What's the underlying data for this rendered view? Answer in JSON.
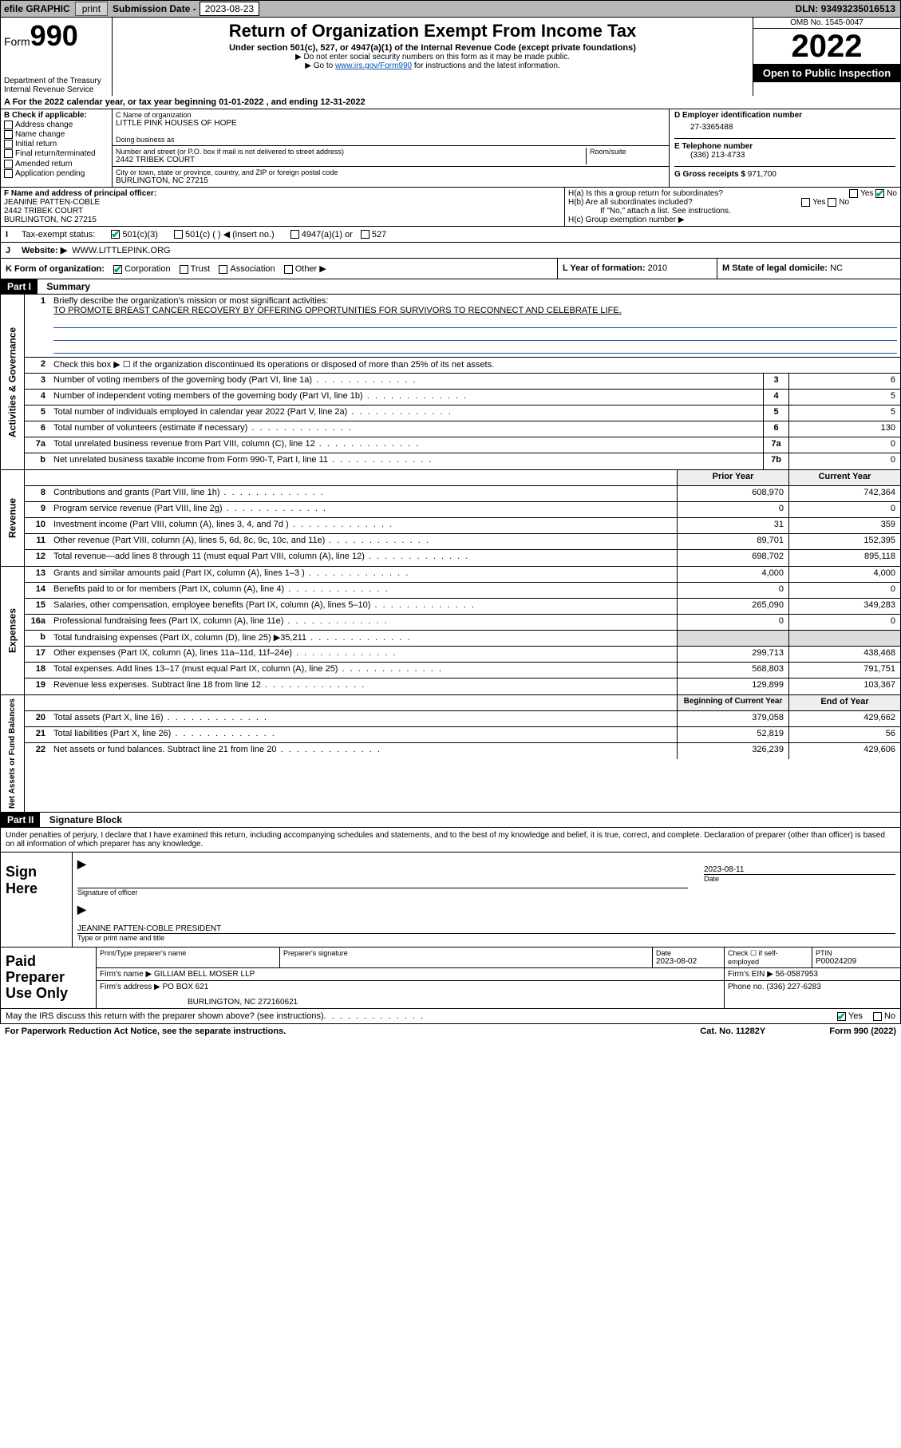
{
  "topbar": {
    "efile_label": "efile GRAPHIC",
    "print_btn": "print",
    "sub_label": "Submission Date -",
    "sub_date": "2023-08-23",
    "dln_label": "DLN:",
    "dln": "93493235016513"
  },
  "header": {
    "form_word": "Form",
    "form_no": "990",
    "dept": "Department of the Treasury",
    "irs": "Internal Revenue Service",
    "title": "Return of Organization Exempt From Income Tax",
    "sub1": "Under section 501(c), 527, or 4947(a)(1) of the Internal Revenue Code (except private foundations)",
    "sub2": "▶ Do not enter social security numbers on this form as it may be made public.",
    "sub3_pre": "▶ Go to ",
    "sub3_link": "www.irs.gov/Form990",
    "sub3_post": " for instructions and the latest information.",
    "omb": "OMB No. 1545-0047",
    "year": "2022",
    "open": "Open to Public Inspection"
  },
  "line_a": "A For the 2022 calendar year, or tax year beginning 01-01-2022   , and ending 12-31-2022",
  "box_b": {
    "title": "B Check if applicable:",
    "opts": [
      "Address change",
      "Name change",
      "Initial return",
      "Final return/terminated",
      "Amended return",
      "Application pending"
    ]
  },
  "box_c": {
    "label": "C Name of organization",
    "name": "LITTLE PINK HOUSES OF HOPE",
    "dba_label": "Doing business as",
    "addr_label": "Number and street (or P.O. box if mail is not delivered to street address)",
    "room_label": "Room/suite",
    "addr": "2442 TRIBEK COURT",
    "city_label": "City or town, state or province, country, and ZIP or foreign postal code",
    "city": "BURLINGTON, NC  27215"
  },
  "box_d": {
    "label": "D Employer identification number",
    "val": "27-3365488"
  },
  "box_e": {
    "label": "E Telephone number",
    "val": "(336) 213-4733"
  },
  "box_g": {
    "label": "G Gross receipts $",
    "val": "971,700"
  },
  "box_f": {
    "label": "F Name and address of principal officer:",
    "name": "JEANINE PATTEN-COBLE",
    "addr1": "2442 TRIBEK COURT",
    "addr2": "BURLINGTON, NC  27215"
  },
  "box_h": {
    "a": "H(a)  Is this a group return for subordinates?",
    "b": "H(b)  Are all subordinates included?",
    "note": "If \"No,\" attach a list. See instructions.",
    "c": "H(c)  Group exemption number ▶"
  },
  "box_i": {
    "label": "Tax-exempt status:",
    "o1": "501(c)(3)",
    "o2": "501(c) (   ) ◀ (insert no.)",
    "o3": "4947(a)(1) or",
    "o4": "527"
  },
  "box_j": {
    "label": "Website: ▶",
    "val": "WWW.LITTLEPINK.ORG"
  },
  "box_k": {
    "label": "K Form of organization:",
    "opts": [
      "Corporation",
      "Trust",
      "Association",
      "Other ▶"
    ]
  },
  "box_l": {
    "label": "L Year of formation:",
    "val": "2010"
  },
  "box_m": {
    "label": "M State of legal domicile:",
    "val": "NC"
  },
  "part1": {
    "hdr": "Part I",
    "title": "Summary"
  },
  "summary": {
    "q1a": "Briefly describe the organization's mission or most significant activities:",
    "q1b": "TO PROMOTE BREAST CANCER RECOVERY BY OFFERING OPPORTUNITIES FOR SURVIVORS TO RECONNECT AND CELEBRATE LIFE.",
    "q2": "Check this box ▶ ☐  if the organization discontinued its operations or disposed of more than 25% of its net assets.",
    "rows_gov": [
      {
        "n": "3",
        "d": "Number of voting members of the governing body (Part VI, line 1a)",
        "box": "3",
        "v": "6"
      },
      {
        "n": "4",
        "d": "Number of independent voting members of the governing body (Part VI, line 1b)",
        "box": "4",
        "v": "5"
      },
      {
        "n": "5",
        "d": "Total number of individuals employed in calendar year 2022 (Part V, line 2a)",
        "box": "5",
        "v": "5"
      },
      {
        "n": "6",
        "d": "Total number of volunteers (estimate if necessary)",
        "box": "6",
        "v": "130"
      },
      {
        "n": "7a",
        "d": "Total unrelated business revenue from Part VIII, column (C), line 12",
        "box": "7a",
        "v": "0"
      },
      {
        "n": "b",
        "d": "Net unrelated business taxable income from Form 990-T, Part I, line 11",
        "box": "7b",
        "v": "0"
      }
    ],
    "colhdr_prior": "Prior Year",
    "colhdr_curr": "Current Year",
    "rows_rev": [
      {
        "n": "8",
        "d": "Contributions and grants (Part VIII, line 1h)",
        "p": "608,970",
        "c": "742,364"
      },
      {
        "n": "9",
        "d": "Program service revenue (Part VIII, line 2g)",
        "p": "0",
        "c": "0"
      },
      {
        "n": "10",
        "d": "Investment income (Part VIII, column (A), lines 3, 4, and 7d )",
        "p": "31",
        "c": "359"
      },
      {
        "n": "11",
        "d": "Other revenue (Part VIII, column (A), lines 5, 6d, 8c, 9c, 10c, and 11e)",
        "p": "89,701",
        "c": "152,395"
      },
      {
        "n": "12",
        "d": "Total revenue—add lines 8 through 11 (must equal Part VIII, column (A), line 12)",
        "p": "698,702",
        "c": "895,118"
      }
    ],
    "rows_exp": [
      {
        "n": "13",
        "d": "Grants and similar amounts paid (Part IX, column (A), lines 1–3 )",
        "p": "4,000",
        "c": "4,000"
      },
      {
        "n": "14",
        "d": "Benefits paid to or for members (Part IX, column (A), line 4)",
        "p": "0",
        "c": "0"
      },
      {
        "n": "15",
        "d": "Salaries, other compensation, employee benefits (Part IX, column (A), lines 5–10)",
        "p": "265,090",
        "c": "349,283"
      },
      {
        "n": "16a",
        "d": "Professional fundraising fees (Part IX, column (A), line 11e)",
        "p": "0",
        "c": "0"
      },
      {
        "n": "b",
        "d": "Total fundraising expenses (Part IX, column (D), line 25) ▶35,211",
        "p": "",
        "c": ""
      },
      {
        "n": "17",
        "d": "Other expenses (Part IX, column (A), lines 11a–11d, 11f–24e)",
        "p": "299,713",
        "c": "438,468"
      },
      {
        "n": "18",
        "d": "Total expenses. Add lines 13–17 (must equal Part IX, column (A), line 25)",
        "p": "568,803",
        "c": "791,751"
      },
      {
        "n": "19",
        "d": "Revenue less expenses. Subtract line 18 from line 12",
        "p": "129,899",
        "c": "103,367"
      }
    ],
    "colhdr_beg": "Beginning of Current Year",
    "colhdr_end": "End of Year",
    "rows_net": [
      {
        "n": "20",
        "d": "Total assets (Part X, line 16)",
        "p": "379,058",
        "c": "429,662"
      },
      {
        "n": "21",
        "d": "Total liabilities (Part X, line 26)",
        "p": "52,819",
        "c": "56"
      },
      {
        "n": "22",
        "d": "Net assets or fund balances. Subtract line 21 from line 20",
        "p": "326,239",
        "c": "429,606"
      }
    ],
    "vtab_gov": "Activities & Governance",
    "vtab_rev": "Revenue",
    "vtab_exp": "Expenses",
    "vtab_net": "Net Assets or Fund Balances"
  },
  "part2": {
    "hdr": "Part II",
    "title": "Signature Block"
  },
  "sig": {
    "intro": "Under penalties of perjury, I declare that I have examined this return, including accompanying schedules and statements, and to the best of my knowledge and belief, it is true, correct, and complete. Declaration of preparer (other than officer) is based on all information of which preparer has any knowledge.",
    "sign_here": "Sign Here",
    "sig_officer": "Signature of officer",
    "date": "2023-08-11",
    "date_lbl": "Date",
    "name": "JEANINE PATTEN-COBLE  PRESIDENT",
    "name_lbl": "Type or print name and title"
  },
  "prep": {
    "title": "Paid Preparer Use Only",
    "h1": "Print/Type preparer's name",
    "h2": "Preparer's signature",
    "h3": "Date",
    "h3v": "2023-08-02",
    "h4": "Check ☐ if self-employed",
    "h5": "PTIN",
    "h5v": "P00024209",
    "firm_lbl": "Firm's name    ▶",
    "firm": "GILLIAM BELL MOSER LLP",
    "ein_lbl": "Firm's EIN ▶",
    "ein": "56-0587953",
    "addr_lbl": "Firm's address ▶",
    "addr1": "PO BOX 621",
    "addr2": "BURLINGTON, NC  272160621",
    "phone_lbl": "Phone no.",
    "phone": "(336) 227-6283"
  },
  "footer": {
    "q": "May the IRS discuss this return with the preparer shown above? (see instructions)",
    "yes": "Yes",
    "no": "No",
    "pra": "For Paperwork Reduction Act Notice, see the separate instructions.",
    "cat": "Cat. No. 11282Y",
    "form": "Form 990 (2022)"
  },
  "colors": {
    "link": "#0050b3",
    "check": "#0a5",
    "mission_underline": "#2050a0"
  }
}
